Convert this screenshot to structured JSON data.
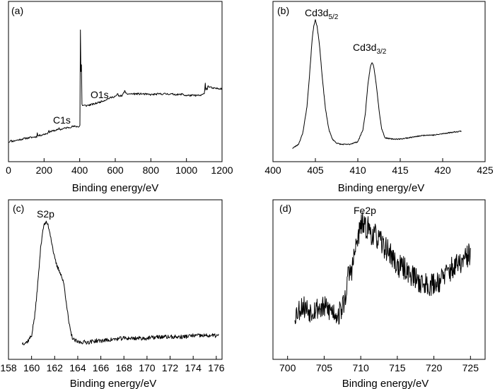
{
  "chart_data": [
    {
      "panel": "(a)",
      "type": "line",
      "xlabel": "Binding energy/eV",
      "ylabel": "",
      "xlim": [
        0,
        1200
      ],
      "xticks": [
        "0",
        "200",
        "400",
        "600",
        "800",
        "1000",
        "1200"
      ],
      "yticks": "none",
      "annotations": [
        {
          "text": "C1s",
          "x": 285
        },
        {
          "text": "O1s",
          "x": 531
        }
      ],
      "x": [
        2,
        10,
        11,
        12,
        13,
        20,
        60,
        100,
        160,
        162,
        163,
        164,
        166,
        200,
        225,
        227,
        229,
        231,
        260,
        284,
        285,
        286,
        288,
        320,
        360,
        398,
        402,
        404,
        405,
        406,
        408,
        410,
        412,
        415,
        420,
        440,
        480,
        520,
        530,
        531,
        532,
        534,
        560,
        600,
        612,
        614,
        616,
        620,
        640,
        650,
        654,
        656,
        660,
        700,
        750,
        800,
        850,
        900,
        960,
        980,
        990,
        1000,
        1050,
        1080,
        1100,
        1106,
        1108,
        1112,
        1116,
        1120,
        1150,
        1200
      ],
      "y": [
        8,
        9,
        12,
        30,
        10,
        9,
        11,
        13,
        15,
        22,
        15,
        16,
        16,
        18,
        20,
        25,
        20,
        21,
        23,
        24,
        32,
        24,
        24,
        26,
        28,
        28,
        30,
        168,
        85,
        140,
        60,
        110,
        58,
        55,
        55,
        55,
        57,
        60,
        61,
        68,
        62,
        61,
        64,
        67,
        68,
        78,
        66,
        67,
        68,
        72,
        78,
        70,
        70,
        70,
        70,
        69,
        70,
        70,
        69,
        70,
        68,
        68,
        68,
        68,
        70,
        85,
        74,
        78,
        75,
        80,
        77,
        77
      ]
    },
    {
      "panel": "(b)",
      "type": "line",
      "xlabel": "Binding energy/eV",
      "ylabel": "",
      "xlim": [
        400,
        425
      ],
      "xticks": [
        "400",
        "405",
        "410",
        "415",
        "420",
        "425"
      ],
      "yticks": "none",
      "annotations": [
        {
          "text": "Cd3d",
          "sub": "5/2",
          "x": 405
        },
        {
          "text": "Cd3d",
          "sub": "3/2",
          "x": 411.7
        }
      ],
      "x": [
        402.3,
        403,
        403.5,
        404,
        404.3,
        404.6,
        404.8,
        405,
        405.2,
        405.5,
        405.8,
        406.2,
        406.6,
        407,
        407.5,
        408,
        409,
        410,
        410.6,
        410.9,
        411.2,
        411.5,
        411.7,
        411.9,
        412.2,
        412.5,
        412.8,
        413.2,
        414,
        415,
        416,
        417,
        418,
        419,
        420,
        421,
        422.2
      ],
      "y": [
        1,
        4,
        12,
        32,
        55,
        82,
        93,
        98,
        93,
        78,
        55,
        30,
        15,
        8,
        5,
        4,
        4,
        6,
        15,
        28,
        50,
        63,
        66,
        62,
        48,
        30,
        16,
        9,
        8,
        8,
        9,
        10,
        11,
        11,
        12,
        13,
        14
      ]
    },
    {
      "panel": "(c)",
      "type": "line",
      "xlabel": "Binding energy/eV",
      "ylabel": "",
      "xlim": [
        158,
        176.5
      ],
      "xticks": [
        "158",
        "160",
        "162",
        "164",
        "166",
        "168",
        "170",
        "172",
        "174",
        "176"
      ],
      "yticks": "none",
      "annotations": [
        {
          "text": "S2p",
          "x": 161.3
        }
      ],
      "x": [
        159.2,
        159.6,
        160,
        160.3,
        160.6,
        160.8,
        161,
        161.2,
        161.4,
        161.6,
        161.8,
        162,
        162.2,
        162.5,
        162.8,
        163,
        163.2,
        163.4,
        163.6,
        163.8,
        164,
        164.5,
        165,
        165.5,
        166,
        167,
        168,
        169,
        170,
        171,
        172,
        173,
        174,
        175,
        176.2
      ],
      "y": [
        2,
        3,
        8,
        25,
        55,
        78,
        92,
        96,
        95,
        88,
        78,
        68,
        62,
        57,
        48,
        35,
        20,
        10,
        5,
        4,
        3,
        3,
        3,
        4,
        4,
        5,
        6,
        6,
        6,
        7,
        7,
        7,
        8,
        8,
        8
      ]
    },
    {
      "panel": "(d)",
      "type": "line",
      "xlabel": "Binding energy/eV",
      "ylabel": "",
      "xlim": [
        698,
        727
      ],
      "xticks": [
        "700",
        "705",
        "710",
        "715",
        "720",
        "725"
      ],
      "yticks": "none",
      "annotations": [
        {
          "text": "Fe2p",
          "x": 710.2
        }
      ],
      "x": [
        701,
        702,
        703,
        704,
        705,
        706,
        707,
        707.8,
        708.3,
        708.8,
        709.3,
        709.8,
        710.2,
        710.6,
        711,
        711.5,
        712,
        713,
        714,
        715,
        716,
        717,
        718,
        719,
        720,
        721,
        722,
        723,
        724,
        725
      ],
      "y": [
        25,
        32,
        28,
        30,
        30,
        28,
        25,
        35,
        55,
        60,
        75,
        88,
        95,
        90,
        92,
        86,
        85,
        78,
        72,
        62,
        60,
        55,
        50,
        48,
        48,
        52,
        58,
        62,
        65,
        72
      ]
    }
  ]
}
